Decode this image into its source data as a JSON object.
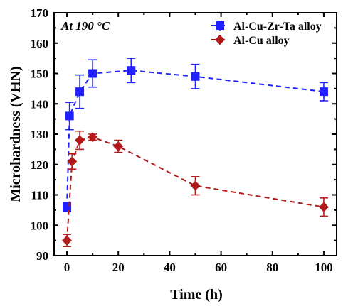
{
  "chart_data": {
    "type": "line",
    "annotation": "At 190 °C",
    "xlabel": "Time (h)",
    "ylabel": "Microhardness (VHN)",
    "xlim": [
      -5,
      105
    ],
    "ylim": [
      90,
      170
    ],
    "xticks": [
      0,
      20,
      40,
      60,
      80,
      100
    ],
    "yticks": [
      90,
      100,
      110,
      120,
      130,
      140,
      150,
      160,
      170
    ],
    "legend_position": "top-right",
    "grid": false,
    "series": [
      {
        "name": "Al-Cu-Zr-Ta alloy",
        "color": "#1f1fff",
        "marker": "square",
        "line_style": "dashed",
        "x": [
          0,
          1,
          5,
          10,
          25,
          50,
          100
        ],
        "y": [
          106,
          136,
          144,
          150,
          151,
          149,
          144
        ],
        "error": [
          1.5,
          4.5,
          5.5,
          4.5,
          4,
          4,
          3
        ]
      },
      {
        "name": "Al-Cu alloy",
        "color": "#b01a1a",
        "marker": "diamond",
        "line_style": "dashed",
        "x": [
          0,
          2,
          5,
          10,
          20,
          50,
          100
        ],
        "y": [
          95,
          121,
          128,
          129,
          126,
          113,
          106
        ],
        "error": [
          2,
          2.5,
          3,
          1,
          2,
          3,
          3
        ]
      }
    ]
  }
}
